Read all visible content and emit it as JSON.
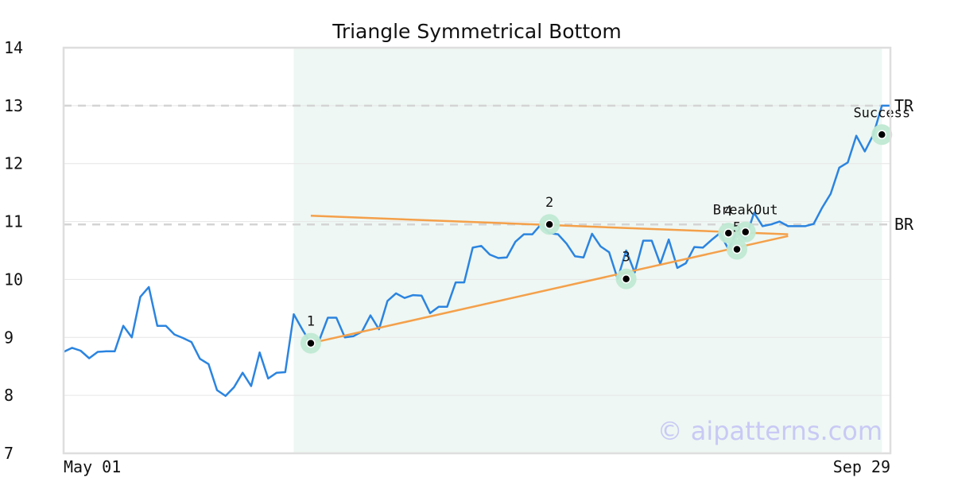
{
  "chart_data": {
    "type": "line",
    "title": "Triangle Symmetrical Bottom",
    "x_tick_labels": {
      "start": "May 01",
      "end": "Sep 29"
    },
    "ylim": [
      7,
      14
    ],
    "y_ticks": [
      7,
      8,
      9,
      10,
      11,
      12,
      13,
      14
    ],
    "grid": true,
    "series": [
      {
        "color": "#2b84e0",
        "values": [
          8.75,
          8.82,
          8.77,
          8.64,
          8.75,
          8.76,
          8.76,
          9.2,
          9.0,
          9.7,
          9.87,
          9.2,
          9.2,
          9.05,
          8.99,
          8.92,
          8.63,
          8.54,
          8.09,
          7.99,
          8.14,
          8.39,
          8.16,
          8.74,
          8.29,
          8.39,
          8.4,
          9.4,
          9.14,
          8.89,
          8.95,
          9.34,
          9.34,
          9.0,
          9.02,
          9.1,
          9.38,
          9.14,
          9.63,
          9.76,
          9.68,
          9.73,
          9.72,
          9.42,
          9.53,
          9.53,
          9.95,
          9.95,
          10.55,
          10.58,
          10.43,
          10.37,
          10.38,
          10.65,
          10.78,
          10.78,
          10.95,
          10.8,
          10.78,
          10.62,
          10.4,
          10.38,
          10.79,
          10.57,
          10.47,
          10.01,
          10.5,
          10.12,
          10.67,
          10.67,
          10.27,
          10.69,
          10.2,
          10.28,
          10.56,
          10.55,
          10.68,
          10.8,
          10.52,
          10.82,
          10.7,
          11.15,
          10.92,
          10.95,
          11.0,
          10.92,
          10.92,
          10.92,
          10.96,
          11.24,
          11.48,
          11.93,
          12.02,
          12.48,
          12.21,
          12.5,
          13.0,
          13.0
        ]
      }
    ],
    "shaded_region": {
      "from_index": 27,
      "to_index": 96,
      "color": "#eef7f3"
    },
    "levels": [
      {
        "label": "TR",
        "value": 13.0
      },
      {
        "label": "BR",
        "value": 10.95
      }
    ],
    "trendlines": [
      {
        "color": "#f4a04a",
        "points": [
          [
            29,
            11.1
          ],
          [
            85,
            10.78
          ]
        ]
      },
      {
        "color": "#f4a04a",
        "points": [
          [
            29,
            8.9
          ],
          [
            85,
            10.75
          ]
        ]
      }
    ],
    "markers": [
      {
        "label": "1",
        "x": 29,
        "y": 8.9
      },
      {
        "label": "2",
        "x": 57,
        "y": 10.95
      },
      {
        "label": "3",
        "x": 66,
        "y": 10.01
      },
      {
        "label": "4",
        "x": 78,
        "y": 10.8
      },
      {
        "label": "5",
        "x": 79,
        "y": 10.52
      },
      {
        "label": "BreakOut",
        "x": 80,
        "y": 10.82
      },
      {
        "label": "Success",
        "x": 96,
        "y": 12.5
      }
    ],
    "watermark": "© aipatterns.com"
  }
}
